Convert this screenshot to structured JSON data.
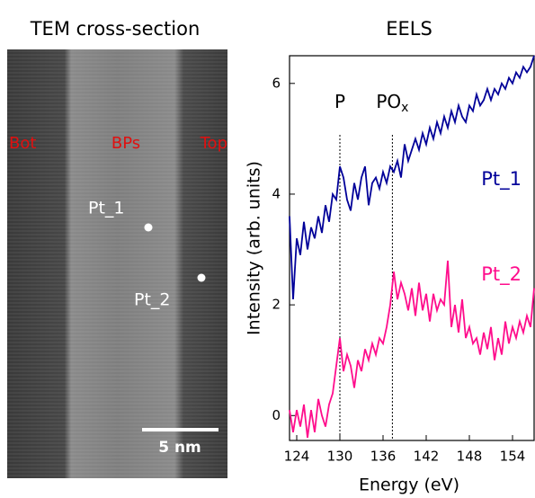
{
  "image": {
    "title": "TEM cross-section",
    "labels": [
      "Bot",
      "BPs",
      "Top"
    ],
    "points": [
      "Pt_1",
      "Pt_2"
    ],
    "scale_bar": "5 nm"
  },
  "chart_data": {
    "type": "line",
    "title": "EELS",
    "x_label": "Energy (eV)",
    "y_label": "Intensity (arb. units)",
    "x": [
      123,
      123.5,
      124,
      124.5,
      125,
      125.5,
      126,
      126.5,
      127,
      127.5,
      128,
      128.5,
      129,
      129.5,
      130,
      130.5,
      131,
      131.5,
      132,
      132.5,
      133,
      133.5,
      134,
      134.5,
      135,
      135.5,
      136,
      136.5,
      137,
      137.5,
      138,
      138.5,
      139,
      139.5,
      140,
      140.5,
      141,
      141.5,
      142,
      142.5,
      143,
      143.5,
      144,
      144.5,
      145,
      145.5,
      146,
      146.5,
      147,
      147.5,
      148,
      148.5,
      149,
      149.5,
      150,
      150.5,
      151,
      151.5,
      152,
      152.5,
      153,
      153.5,
      154,
      154.5,
      155,
      155.5,
      156,
      156.5,
      157
    ],
    "series": [
      {
        "name": "Pt_1",
        "color": "#000099",
        "values": [
          3.6,
          2.1,
          3.2,
          2.9,
          3.5,
          3.0,
          3.4,
          3.2,
          3.6,
          3.3,
          3.8,
          3.5,
          4.0,
          3.9,
          4.5,
          4.3,
          3.9,
          3.7,
          4.2,
          3.9,
          4.3,
          4.5,
          3.8,
          4.2,
          4.3,
          4.1,
          4.4,
          4.2,
          4.5,
          4.4,
          4.6,
          4.3,
          4.9,
          4.6,
          4.8,
          5.0,
          4.8,
          5.1,
          4.9,
          5.2,
          5.0,
          5.3,
          5.1,
          5.4,
          5.2,
          5.5,
          5.3,
          5.6,
          5.4,
          5.3,
          5.6,
          5.5,
          5.8,
          5.6,
          5.7,
          5.9,
          5.7,
          5.9,
          5.8,
          6.0,
          5.9,
          6.1,
          6.0,
          6.2,
          6.1,
          6.3,
          6.2,
          6.3,
          6.5
        ]
      },
      {
        "name": "Pt_2",
        "color": "#ff0d8c",
        "values": [
          0.1,
          -0.3,
          0.1,
          -0.2,
          0.2,
          -0.4,
          0.1,
          -0.3,
          0.3,
          0.0,
          -0.2,
          0.2,
          0.4,
          0.9,
          1.4,
          0.8,
          1.1,
          0.9,
          0.5,
          1.0,
          0.8,
          1.2,
          1.0,
          1.3,
          1.1,
          1.4,
          1.3,
          1.6,
          2.0,
          2.6,
          2.1,
          2.4,
          2.2,
          1.9,
          2.3,
          1.8,
          2.4,
          1.9,
          2.2,
          1.7,
          2.2,
          1.9,
          2.1,
          2.0,
          2.8,
          1.6,
          2.0,
          1.5,
          2.1,
          1.4,
          1.6,
          1.3,
          1.4,
          1.1,
          1.5,
          1.2,
          1.6,
          1.0,
          1.4,
          1.1,
          1.7,
          1.3,
          1.6,
          1.4,
          1.7,
          1.5,
          1.8,
          1.6,
          2.3
        ]
      }
    ],
    "vlines": [
      {
        "x": 130,
        "text": "P"
      },
      {
        "x": 137.3,
        "text": "PO",
        "sub": "x"
      }
    ],
    "xlim": [
      123,
      157
    ],
    "ylim": [
      -0.45,
      6.5
    ],
    "xticks": [
      124,
      130,
      136,
      142,
      148,
      154
    ],
    "yticks": [
      0,
      2,
      4,
      6
    ]
  }
}
